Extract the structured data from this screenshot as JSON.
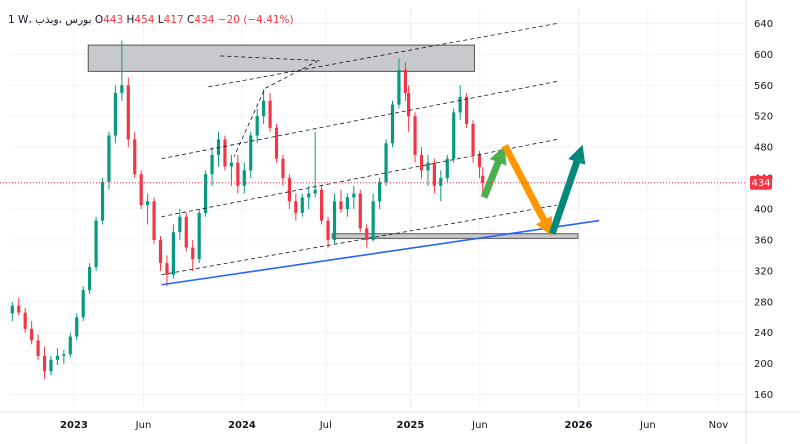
{
  "header": {
    "interval": "1",
    "symbol": "W، بورس ،وبذب",
    "open_label": "O",
    "open": "443",
    "high_label": "H",
    "high": "454",
    "low_label": "L",
    "low": "417",
    "close_label": "C",
    "close": "434",
    "change": "−20 (−4.41%)"
  },
  "price_badge": "434",
  "colors": {
    "up": "#089981",
    "down": "#f23645",
    "trendline": "#2962ff",
    "channel": "#131722",
    "zone": "#c8c9cc",
    "arrow_green": "#4caf50",
    "arrow_orange": "#ff9800",
    "arrow_teal": "#00897b"
  },
  "chart_data": {
    "type": "candlestick",
    "y_ticks": [
      160,
      200,
      240,
      280,
      320,
      360,
      400,
      440,
      480,
      520,
      560,
      600,
      640
    ],
    "x_ticks": [
      {
        "label": "2023",
        "date": "2023-01-01",
        "bold": true
      },
      {
        "label": "Jun",
        "date": "2023-06-01",
        "bold": false
      },
      {
        "label": "2024",
        "date": "2024-01-01",
        "bold": true
      },
      {
        "label": "Jul",
        "date": "2024-07-01",
        "bold": false
      },
      {
        "label": "2025",
        "date": "2025-01-01",
        "bold": true
      },
      {
        "label": "Jun",
        "date": "2025-06-01",
        "bold": false
      },
      {
        "label": "2026",
        "date": "2026-01-01",
        "bold": true
      },
      {
        "label": "Jun",
        "date": "2026-06-01",
        "bold": false
      },
      {
        "label": "Nov",
        "date": "2026-11-01",
        "bold": false
      }
    ],
    "ylim": [
      140,
      660
    ],
    "xlim": [
      "2022-08-15",
      "2026-12-31"
    ],
    "last_close": 434,
    "candles": [
      [
        "2022-08-20",
        265,
        280,
        255,
        275
      ],
      [
        "2022-09-03",
        275,
        285,
        262,
        266
      ],
      [
        "2022-09-17",
        266,
        272,
        240,
        245
      ],
      [
        "2022-10-01",
        245,
        255,
        225,
        230
      ],
      [
        "2022-10-15",
        230,
        238,
        205,
        210
      ],
      [
        "2022-10-29",
        210,
        222,
        180,
        190
      ],
      [
        "2022-11-12",
        190,
        210,
        185,
        205
      ],
      [
        "2022-11-26",
        205,
        220,
        198,
        210
      ],
      [
        "2022-12-10",
        210,
        218,
        200,
        212
      ],
      [
        "2022-12-24",
        212,
        240,
        208,
        235
      ],
      [
        "2023-01-07",
        235,
        265,
        230,
        260
      ],
      [
        "2023-01-21",
        260,
        300,
        255,
        295
      ],
      [
        "2023-02-04",
        295,
        330,
        290,
        325
      ],
      [
        "2023-02-18",
        325,
        390,
        320,
        385
      ],
      [
        "2023-03-04",
        385,
        440,
        380,
        435
      ],
      [
        "2023-03-18",
        435,
        500,
        425,
        495
      ],
      [
        "2023-04-01",
        495,
        560,
        485,
        550
      ],
      [
        "2023-04-15",
        550,
        618,
        540,
        560
      ],
      [
        "2023-04-29",
        560,
        570,
        480,
        490
      ],
      [
        "2023-05-13",
        490,
        500,
        440,
        445
      ],
      [
        "2023-05-27",
        445,
        450,
        400,
        405
      ],
      [
        "2023-06-10",
        405,
        420,
        380,
        410
      ],
      [
        "2023-06-24",
        410,
        415,
        355,
        360
      ],
      [
        "2023-07-08",
        360,
        365,
        320,
        330
      ],
      [
        "2023-07-22",
        330,
        340,
        300,
        315
      ],
      [
        "2023-08-05",
        315,
        380,
        310,
        370
      ],
      [
        "2023-08-19",
        370,
        400,
        360,
        390
      ],
      [
        "2023-09-02",
        390,
        395,
        345,
        350
      ],
      [
        "2023-09-16",
        350,
        360,
        320,
        335
      ],
      [
        "2023-09-30",
        335,
        400,
        330,
        395
      ],
      [
        "2023-10-14",
        395,
        450,
        390,
        445
      ],
      [
        "2023-10-28",
        445,
        480,
        430,
        470
      ],
      [
        "2023-11-11",
        470,
        500,
        455,
        490
      ],
      [
        "2023-11-25",
        490,
        495,
        450,
        455
      ],
      [
        "2023-12-09",
        455,
        470,
        430,
        460
      ],
      [
        "2023-12-23",
        460,
        470,
        420,
        430
      ],
      [
        "2024-01-06",
        430,
        460,
        420,
        450
      ],
      [
        "2024-01-20",
        450,
        500,
        440,
        495
      ],
      [
        "2024-02-03",
        495,
        530,
        485,
        520
      ],
      [
        "2024-02-17",
        520,
        555,
        510,
        540
      ],
      [
        "2024-03-02",
        540,
        550,
        500,
        505
      ],
      [
        "2024-03-16",
        505,
        510,
        460,
        465
      ],
      [
        "2024-03-30",
        465,
        470,
        430,
        440
      ],
      [
        "2024-04-13",
        440,
        445,
        400,
        410
      ],
      [
        "2024-04-27",
        410,
        420,
        385,
        395
      ],
      [
        "2024-05-11",
        395,
        420,
        390,
        415
      ],
      [
        "2024-05-25",
        415,
        430,
        400,
        420
      ],
      [
        "2024-06-08",
        420,
        500,
        415,
        425
      ],
      [
        "2024-06-22",
        425,
        430,
        380,
        385
      ],
      [
        "2024-07-06",
        385,
        390,
        350,
        360
      ],
      [
        "2024-07-20",
        360,
        420,
        355,
        410
      ],
      [
        "2024-08-03",
        410,
        425,
        395,
        400
      ],
      [
        "2024-08-17",
        400,
        420,
        390,
        415
      ],
      [
        "2024-08-31",
        415,
        430,
        400,
        420
      ],
      [
        "2024-09-14",
        420,
        425,
        370,
        375
      ],
      [
        "2024-09-28",
        375,
        380,
        350,
        360
      ],
      [
        "2024-10-12",
        360,
        420,
        358,
        410
      ],
      [
        "2024-10-26",
        410,
        440,
        400,
        435
      ],
      [
        "2024-11-09",
        435,
        490,
        430,
        485
      ],
      [
        "2024-11-23",
        485,
        540,
        480,
        535
      ],
      [
        "2024-12-07",
        535,
        595,
        530,
        580
      ],
      [
        "2024-12-21",
        580,
        590,
        540,
        550
      ],
      [
        "2024-12-28",
        550,
        560,
        500,
        520
      ],
      [
        "2025-01-11",
        520,
        525,
        460,
        470
      ],
      [
        "2025-01-25",
        470,
        480,
        440,
        450
      ],
      [
        "2025-02-08",
        450,
        470,
        430,
        460
      ],
      [
        "2025-02-22",
        460,
        465,
        420,
        430
      ],
      [
        "2025-03-08",
        430,
        450,
        410,
        440
      ],
      [
        "2025-03-22",
        440,
        470,
        435,
        465
      ],
      [
        "2025-04-05",
        465,
        530,
        460,
        525
      ],
      [
        "2025-04-19",
        525,
        560,
        515,
        545
      ],
      [
        "2025-05-03",
        545,
        550,
        505,
        510
      ],
      [
        "2025-05-17",
        510,
        515,
        460,
        470
      ],
      [
        "2025-05-31",
        470,
        475,
        440,
        454
      ],
      [
        "2025-06-07",
        443,
        454,
        417,
        434
      ]
    ],
    "annotations": {
      "resistance_zone": {
        "x1": "2023-02-01",
        "x2": "2025-05-20",
        "y_low": 578,
        "y_high": 612
      },
      "support_zone": {
        "x1": "2024-07-15",
        "x2": "2025-12-31",
        "y_low": 362,
        "y_high": 368
      },
      "trendline": {
        "x1": "2023-07-10",
        "y1": 302,
        "x2": "2026-02-15",
        "y2": 385
      },
      "channel_lines": [
        {
          "x1": "2023-07-10",
          "y1": 315,
          "x2": "2025-11-15",
          "y2": 405
        },
        {
          "x1": "2023-07-10",
          "y1": 390,
          "x2": "2025-11-15",
          "y2": 490
        },
        {
          "x1": "2023-07-10",
          "y1": 465,
          "x2": "2025-11-15",
          "y2": 565
        },
        {
          "x1": "2023-10-20",
          "y1": 558,
          "x2": "2025-11-15",
          "y2": 640
        }
      ],
      "triangle": [
        {
          "x": "2023-11-15",
          "y": 598
        },
        {
          "x": "2024-06-15",
          "y": 592
        },
        {
          "x": "2024-02-20",
          "y": 556
        },
        {
          "x": "2023-12-15",
          "y": 468
        }
      ],
      "arrows": [
        {
          "color_key": "arrow_green",
          "x1": "2025-06-10",
          "y1": 415,
          "x2": "2025-07-25",
          "y2": 482
        },
        {
          "color_key": "arrow_orange",
          "x1": "2025-07-25",
          "y1": 482,
          "x2": "2025-11-05",
          "y2": 365
        },
        {
          "color_key": "arrow_teal",
          "x1": "2025-11-05",
          "y1": 368,
          "x2": "2026-01-10",
          "y2": 483
        }
      ]
    }
  }
}
